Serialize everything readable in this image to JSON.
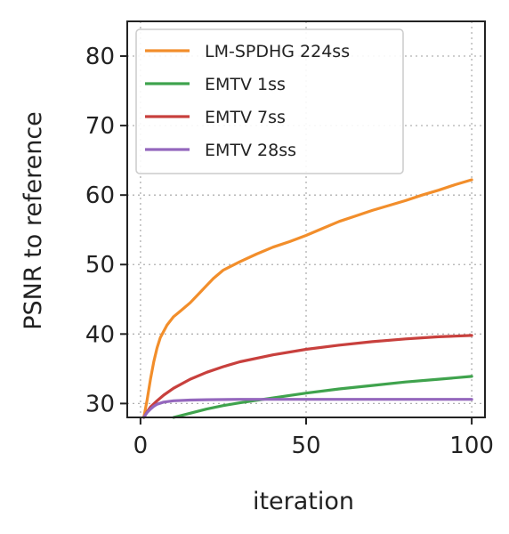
{
  "chart_data": {
    "type": "line",
    "title": "",
    "xlabel": "iteration",
    "ylabel": "PSNR to reference",
    "xlim": [
      -4,
      104
    ],
    "ylim": [
      28,
      85
    ],
    "xticks": [
      0,
      50,
      100
    ],
    "yticks": [
      30,
      40,
      50,
      60,
      70,
      80
    ],
    "grid": true,
    "legend_position": "top-left",
    "series": [
      {
        "name": "LM-SPDHG 224ss",
        "color": "#f28e2b",
        "x": [
          1,
          2,
          3,
          4,
          5,
          6,
          8,
          10,
          12,
          15,
          18,
          20,
          22,
          25,
          30,
          35,
          40,
          45,
          50,
          55,
          60,
          65,
          70,
          75,
          80,
          85,
          90,
          95,
          100
        ],
        "y": [
          28,
          30.5,
          33.5,
          36,
          38,
          39.5,
          41.3,
          42.5,
          43.3,
          44.5,
          46,
          47,
          48,
          49.2,
          50.4,
          51.5,
          52.5,
          53.3,
          54.2,
          55.2,
          56.2,
          57,
          57.8,
          58.5,
          59.2,
          60,
          60.7,
          61.5,
          62.2
        ]
      },
      {
        "name": "EMTV 1ss",
        "color": "#3fa34d",
        "x": [
          10,
          15,
          20,
          25,
          30,
          40,
          50,
          60,
          70,
          80,
          90,
          100
        ],
        "y": [
          28,
          28.6,
          29.2,
          29.7,
          30.1,
          30.8,
          31.5,
          32.1,
          32.6,
          33.1,
          33.5,
          33.9
        ]
      },
      {
        "name": "EMTV 7ss",
        "color": "#c8403d",
        "x": [
          1,
          2,
          3,
          5,
          7,
          10,
          15,
          20,
          25,
          30,
          40,
          50,
          60,
          70,
          80,
          90,
          100
        ],
        "y": [
          28,
          28.8,
          29.5,
          30.4,
          31.2,
          32.2,
          33.5,
          34.5,
          35.3,
          36,
          37,
          37.8,
          38.4,
          38.9,
          39.3,
          39.6,
          39.8
        ]
      },
      {
        "name": "EMTV 28ss",
        "color": "#9467bd",
        "x": [
          1,
          2,
          3,
          4,
          5,
          7,
          10,
          15,
          20,
          30,
          50,
          75,
          100
        ],
        "y": [
          28,
          28.7,
          29.2,
          29.6,
          29.9,
          30.2,
          30.4,
          30.5,
          30.55,
          30.6,
          30.6,
          30.6,
          30.6
        ]
      }
    ]
  }
}
